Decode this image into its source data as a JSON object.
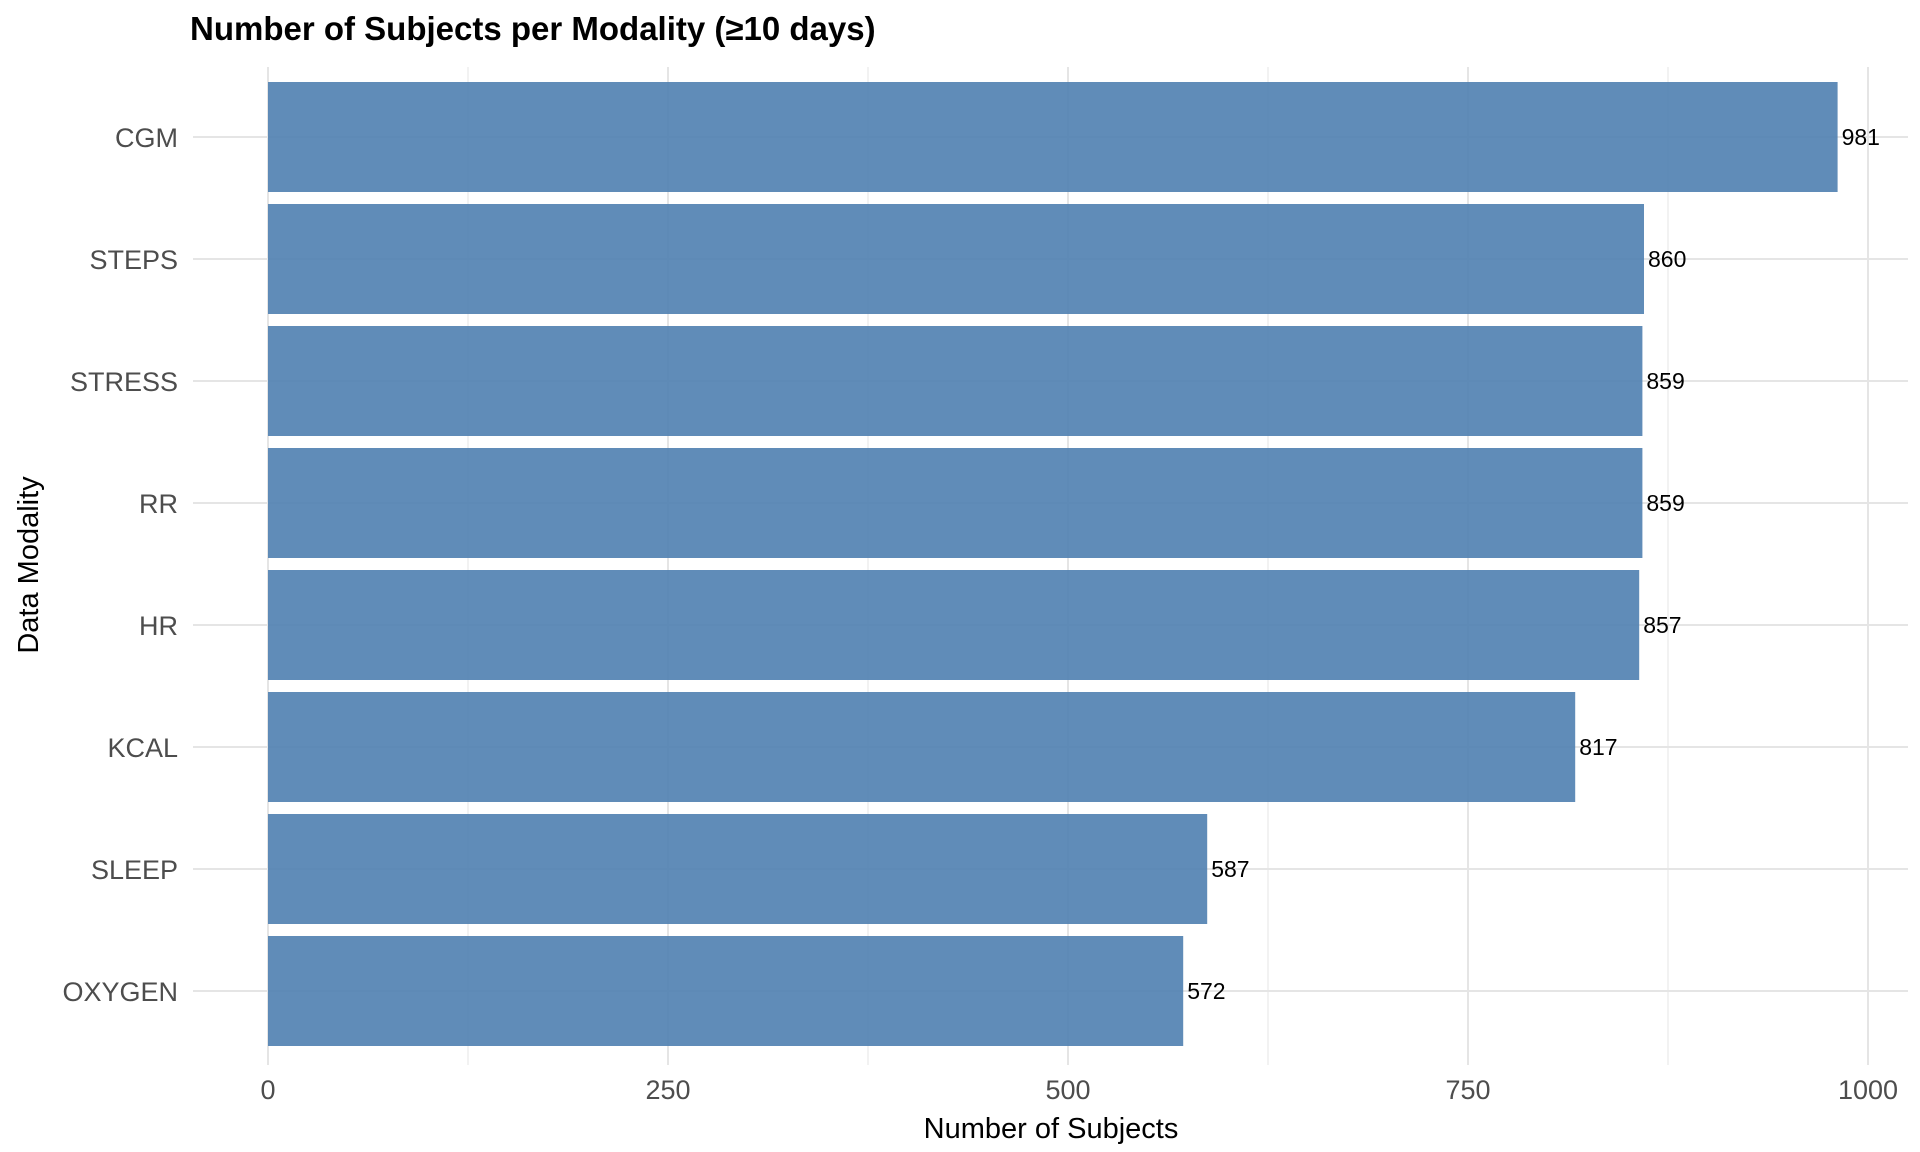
{
  "chart_data": {
    "type": "bar",
    "orientation": "horizontal",
    "title": "Number of Subjects per Modality (≥10 days)",
    "xlabel": "Number of Subjects",
    "ylabel": "Data Modality",
    "categories": [
      "CGM",
      "STEPS",
      "STRESS",
      "RR",
      "HR",
      "KCAL",
      "SLEEP",
      "OXYGEN"
    ],
    "values": [
      981,
      860,
      859,
      859,
      857,
      817,
      587,
      572
    ],
    "data_labels": [
      "981",
      "860",
      "859",
      "859",
      "857",
      "817",
      "587",
      "572"
    ],
    "xlim": [
      0,
      1000
    ],
    "xticks": [
      0,
      250,
      500,
      750,
      1000
    ],
    "xtick_labels": [
      "0",
      "250",
      "500",
      "750",
      "1000"
    ],
    "grid": true,
    "legend": "none",
    "bar_color": "#4f7fb0",
    "grid_color": "#e5e5e5"
  }
}
